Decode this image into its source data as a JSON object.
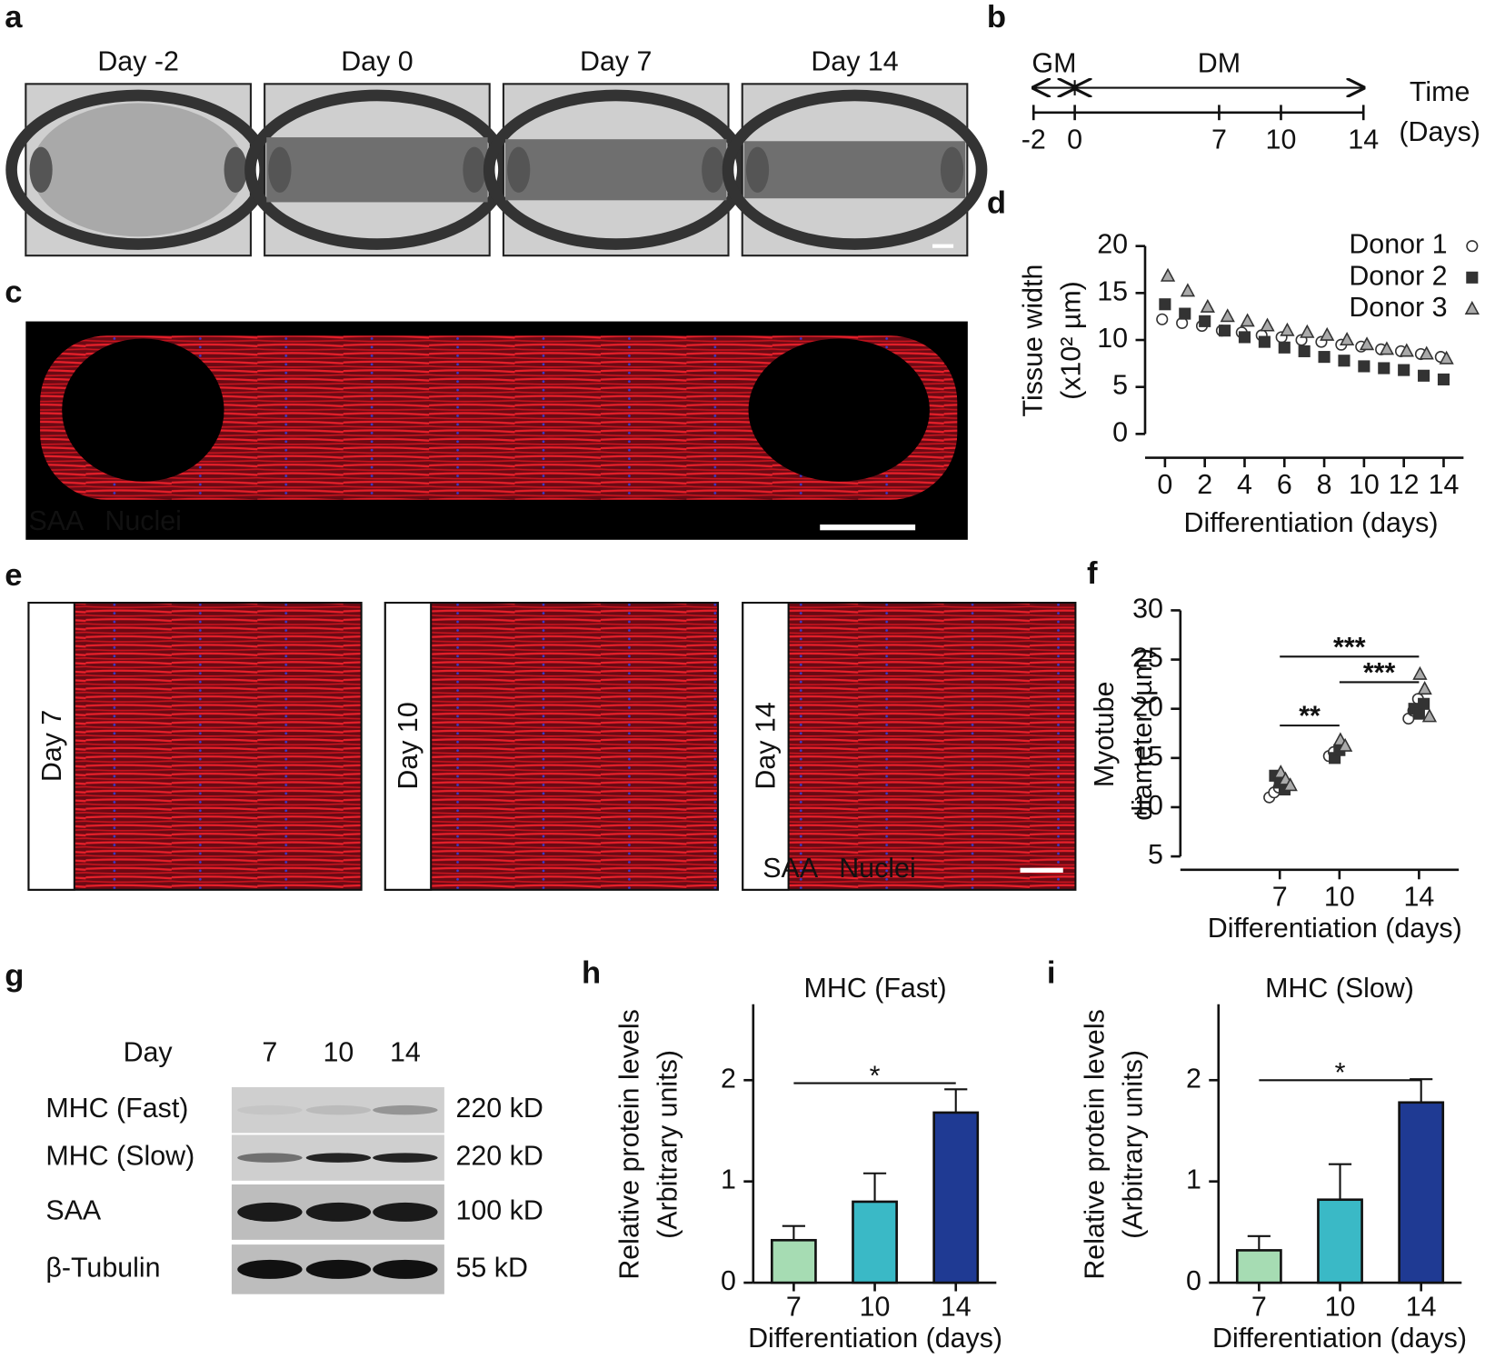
{
  "panels": {
    "a": {
      "label": "a",
      "days": [
        "Day -2",
        "Day 0",
        "Day 7",
        "Day 14"
      ]
    },
    "b": {
      "label": "b",
      "phases": [
        "GM",
        "DM"
      ],
      "axis_title": [
        "Time",
        "(Days)"
      ],
      "ticks": [
        -2,
        0,
        7,
        10,
        14
      ]
    },
    "c": {
      "label": "c",
      "stains": [
        "SAA",
        "Nuclei"
      ]
    },
    "e": {
      "label": "e",
      "days": [
        "Day 7",
        "Day 10",
        "Day 14"
      ],
      "stains": [
        "SAA",
        "Nuclei"
      ]
    },
    "g": {
      "label": "g",
      "header": "Day",
      "days": [
        "7",
        "10",
        "14"
      ],
      "rows": [
        {
          "name": "MHC (Fast)",
          "size": "220 kD"
        },
        {
          "name": "MHC (Slow)",
          "size": "220 kD"
        },
        {
          "name": "SAA",
          "size": "100 kD"
        },
        {
          "name": "β-Tubulin",
          "size": "55 kD"
        }
      ]
    }
  },
  "chart_data": [
    {
      "type": "scatter",
      "label": "d",
      "ylabel": [
        "Tissue width",
        "(x10² µm)"
      ],
      "xlabel": "Differentiation (days)",
      "x": [
        0,
        1,
        2,
        3,
        4,
        5,
        6,
        7,
        8,
        9,
        10,
        11,
        12,
        13,
        14
      ],
      "series": [
        {
          "name": "Donor 1",
          "marker": "circle",
          "color": "#ffffff",
          "values": [
            12.2,
            11.8,
            11.5,
            11.0,
            10.8,
            10.5,
            10.3,
            10.0,
            9.8,
            9.5,
            9.3,
            9.0,
            8.8,
            8.5,
            8.2
          ]
        },
        {
          "name": "Donor 2",
          "marker": "square",
          "color": "#333333",
          "values": [
            13.8,
            12.8,
            12.0,
            11.0,
            10.3,
            9.8,
            9.2,
            8.8,
            8.2,
            7.8,
            7.2,
            7.0,
            6.8,
            6.2,
            5.8
          ]
        },
        {
          "name": "Donor 3",
          "marker": "triangle",
          "color": "#aaaaaa",
          "values": [
            16.8,
            15.2,
            13.5,
            12.5,
            12.0,
            11.5,
            11.0,
            10.8,
            10.5,
            10.0,
            9.5,
            9.0,
            8.8,
            8.5,
            8.0
          ]
        }
      ],
      "xlim": [
        -1,
        15
      ],
      "ylim": [
        0,
        20
      ],
      "xticks": [
        0,
        2,
        4,
        6,
        8,
        10,
        12,
        14
      ],
      "yticks": [
        0,
        5,
        10,
        15,
        20
      ],
      "legend": "upper right"
    },
    {
      "type": "scatter",
      "label": "f",
      "ylabel": [
        "Myotube",
        "diameter (µm)"
      ],
      "xlabel": "Differentiation (days)",
      "series": [
        {
          "marker": "circle",
          "color": "#ffffff",
          "x": [
            7,
            7,
            7,
            10,
            10,
            14,
            14,
            14
          ],
          "values": [
            11.0,
            11.5,
            12.0,
            15.2,
            15.6,
            19.0,
            19.8,
            21.0
          ]
        },
        {
          "marker": "square",
          "color": "#333333",
          "x": [
            7,
            7,
            7,
            10,
            10,
            14,
            14,
            14
          ],
          "values": [
            13.2,
            12.5,
            11.8,
            15.0,
            15.8,
            20.0,
            19.5,
            20.5
          ]
        },
        {
          "marker": "triangle",
          "color": "#aaaaaa",
          "x": [
            7,
            7,
            7,
            10,
            10,
            14,
            14,
            14
          ],
          "values": [
            13.5,
            12.8,
            12.2,
            16.8,
            16.2,
            23.5,
            22.0,
            19.2
          ]
        }
      ],
      "xlim": [
        2,
        16
      ],
      "ylim": [
        5,
        30
      ],
      "xticks": [
        7,
        10,
        14
      ],
      "yticks": [
        5,
        10,
        15,
        20,
        25,
        30
      ],
      "annotations": [
        {
          "text": "**",
          "x": [
            7,
            10
          ],
          "y": 18.3
        },
        {
          "text": "***",
          "x": [
            10,
            14
          ],
          "y": 22.7
        },
        {
          "text": "***",
          "x": [
            7,
            14
          ],
          "y": 25.3
        }
      ]
    },
    {
      "type": "bar",
      "label": "h",
      "title": "MHC (Fast)",
      "ylabel": [
        "Relative protein levels",
        "(Arbitrary units)"
      ],
      "xlabel": "Differentiation (days)",
      "categories": [
        "7",
        "10",
        "14"
      ],
      "values": [
        0.42,
        0.8,
        1.68
      ],
      "errors": [
        0.14,
        0.28,
        0.23
      ],
      "colors": [
        "#a6dcb3",
        "#3ab9c6",
        "#1f3a93"
      ],
      "ylim": [
        0,
        2.75
      ],
      "yticks": [
        0,
        1,
        2
      ],
      "annotations": [
        {
          "text": "*",
          "y": 1.97
        }
      ]
    },
    {
      "type": "bar",
      "label": "i",
      "title": "MHC (Slow)",
      "ylabel": [
        "Relative protein levels",
        "(Arbitrary units)"
      ],
      "xlabel": "Differentiation (days)",
      "categories": [
        "7",
        "10",
        "14"
      ],
      "values": [
        0.32,
        0.82,
        1.78
      ],
      "errors": [
        0.14,
        0.35,
        0.23
      ],
      "colors": [
        "#a6dcb3",
        "#3ab9c6",
        "#1f3a93"
      ],
      "ylim": [
        0,
        2.75
      ],
      "yticks": [
        0,
        1,
        2
      ],
      "annotations": [
        {
          "text": "*",
          "y": 2.0
        }
      ]
    }
  ]
}
